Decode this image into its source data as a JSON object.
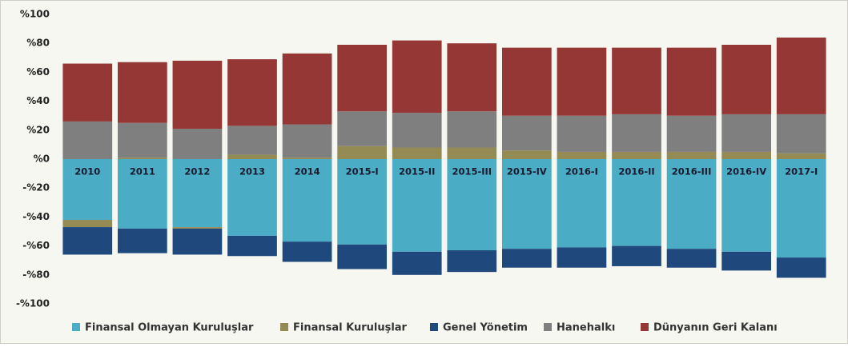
{
  "chart_data": {
    "type": "stacked_bar",
    "categories": [
      "2010",
      "2011",
      "2012",
      "2013",
      "2014",
      "2015-I",
      "2015-II",
      "2015-III",
      "2015-IV",
      "2016-I",
      "2016-II",
      "2016-III",
      "2016-IV",
      "2017-I"
    ],
    "series": [
      {
        "name": "Finansal Olmayan Kuruluşlar",
        "color": "#4bacc6",
        "values": [
          -42,
          -48,
          -47,
          -53,
          -57,
          -59,
          -64,
          -63,
          -62,
          -61,
          -60,
          -62,
          -64,
          -68
        ]
      },
      {
        "name": "Finansal Kuruluşlar",
        "color": "#948a54",
        "values": [
          -5,
          1,
          -1,
          3,
          1,
          9,
          8,
          8,
          6,
          5,
          5,
          5,
          5,
          4
        ]
      },
      {
        "name": "Genel Yönetim",
        "color": "#1f497d",
        "values": [
          -19,
          -17,
          -18,
          -14,
          -14,
          -17,
          -16,
          -15,
          -13,
          -14,
          -14,
          -13,
          -13,
          -14
        ]
      },
      {
        "name": "Hanehalkı",
        "color": "#7f7f7f",
        "values": [
          26,
          24,
          21,
          20,
          23,
          24,
          24,
          25,
          24,
          25,
          26,
          25,
          26,
          27
        ]
      },
      {
        "name": "Dünyanın Geri Kalanı",
        "color": "#953735",
        "values": [
          40,
          42,
          47,
          46,
          49,
          46,
          50,
          47,
          47,
          47,
          46,
          47,
          48,
          53
        ]
      }
    ],
    "ylim": [
      -100,
      100
    ],
    "yticks": [
      {
        "value": 100,
        "label": "%100"
      },
      {
        "value": 80,
        "label": "%80"
      },
      {
        "value": 60,
        "label": "%60"
      },
      {
        "value": 40,
        "label": "%40"
      },
      {
        "value": 20,
        "label": "%20"
      },
      {
        "value": 0,
        "label": "%0"
      },
      {
        "value": -20,
        "label": "-%20"
      },
      {
        "value": -40,
        "label": "-%40"
      },
      {
        "value": -60,
        "label": "-%60"
      },
      {
        "value": -80,
        "label": "-%80"
      },
      {
        "value": -100,
        "label": "-%100"
      }
    ],
    "legend": "bottom"
  }
}
